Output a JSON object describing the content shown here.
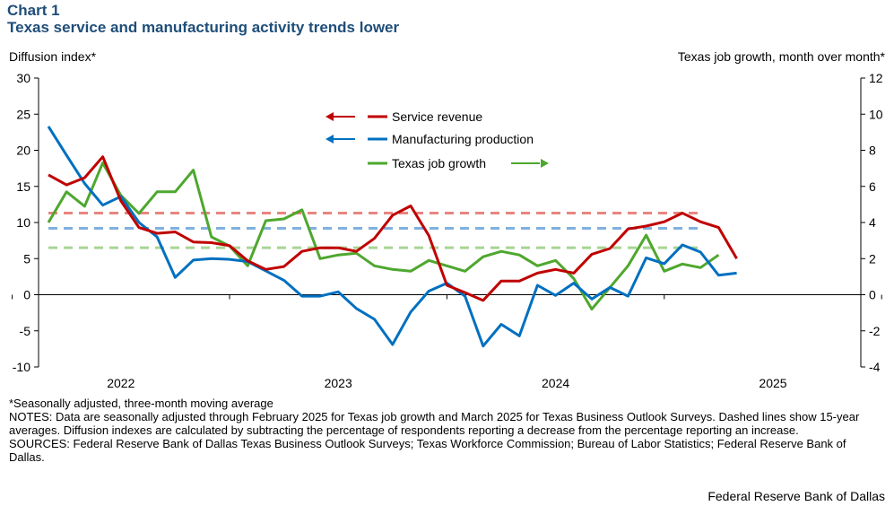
{
  "header": {
    "label": "Chart 1",
    "title": "Texas service and manufacturing activity trends lower"
  },
  "chart_data": {
    "type": "line",
    "left_axis": {
      "title": "Diffusion index*",
      "ylim": [
        -10,
        30
      ],
      "ticks": [
        "30",
        "25",
        "20",
        "15",
        "10",
        "5",
        "0",
        "-5",
        "-10"
      ]
    },
    "right_axis": {
      "title": "Texas job growth, month over month*",
      "ylim": [
        -4,
        12
      ],
      "ticks": [
        "12",
        "10",
        "8",
        "6",
        "4",
        "2",
        "0",
        "-2",
        "-4"
      ]
    },
    "x_axis": {
      "ticks": [
        "2022",
        "2023",
        "2024",
        "2025"
      ]
    },
    "grid": false,
    "legend_position": "top-center",
    "series": [
      {
        "name": "Service revenue",
        "axis": "left",
        "color": "#c00000",
        "values": [
          16.6,
          15.2,
          16.2,
          19.1,
          13.0,
          9.3,
          8.5,
          8.7,
          7.3,
          7.2,
          6.8,
          4.7,
          3.5,
          3.9,
          6.0,
          6.5,
          6.5,
          6.0,
          7.8,
          11.0,
          12.3,
          8.2,
          1.3,
          0.3,
          -0.8,
          1.9,
          1.9,
          3.0,
          3.5,
          3.0,
          5.6,
          6.4,
          9.1,
          9.5,
          10.1,
          11.3,
          10.1,
          9.3,
          5.0
        ]
      },
      {
        "name": "Manufacturing production",
        "axis": "left",
        "color": "#0070c0",
        "values": [
          23.3,
          19.3,
          15.4,
          12.4,
          13.6,
          10.0,
          8.0,
          2.4,
          4.8,
          5.0,
          4.9,
          4.6,
          3.3,
          2.0,
          -0.2,
          -0.2,
          0.4,
          -1.9,
          -3.4,
          -6.9,
          -2.4,
          0.5,
          1.6,
          -0.2,
          -7.1,
          -4.1,
          -5.7,
          1.3,
          -0.1,
          1.6,
          -0.6,
          1.0,
          -0.2,
          5.1,
          4.3,
          6.9,
          5.9,
          2.7,
          3.0
        ]
      },
      {
        "name": "Texas job growth",
        "axis": "right",
        "color": "#4ea72e",
        "values": [
          4.0,
          5.7,
          4.9,
          7.3,
          5.5,
          4.5,
          5.7,
          5.7,
          6.9,
          3.2,
          2.7,
          1.6,
          4.1,
          4.2,
          4.7,
          2.0,
          2.2,
          2.3,
          1.6,
          1.4,
          1.3,
          1.9,
          1.6,
          1.3,
          2.1,
          2.4,
          2.2,
          1.6,
          1.9,
          0.9,
          -0.8,
          0.4,
          1.6,
          3.3,
          1.3,
          1.7,
          1.5,
          2.2
        ]
      }
    ],
    "averages": [
      {
        "series": "Service revenue",
        "value": 11.3,
        "axis": "left",
        "color": "#e8857f"
      },
      {
        "series": "Manufacturing production",
        "value": 9.2,
        "axis": "left",
        "color": "#7fb1e0"
      },
      {
        "series": "Texas job growth",
        "value": 2.6,
        "axis": "right",
        "color": "#a8d595"
      }
    ]
  },
  "footnotes": {
    "seasonal": "*Seasonally adjusted, three-month moving average",
    "notes": "NOTES: Data are seasonally adjusted through February 2025 for Texas job growth and March 2025 for Texas Business Outlook Surveys. Dashed lines show 15-year averages. Diffusion indexes are calculated by subtracting the percentage of respondents reporting a decrease from the percentage reporting an increase.",
    "sources": "SOURCES: Federal Reserve Bank of Dallas Texas Business Outlook Surveys; Texas Workforce Commission; Bureau of Labor Statistics; Federal Reserve Bank of Dallas."
  },
  "credit": "Federal Reserve Bank of Dallas"
}
